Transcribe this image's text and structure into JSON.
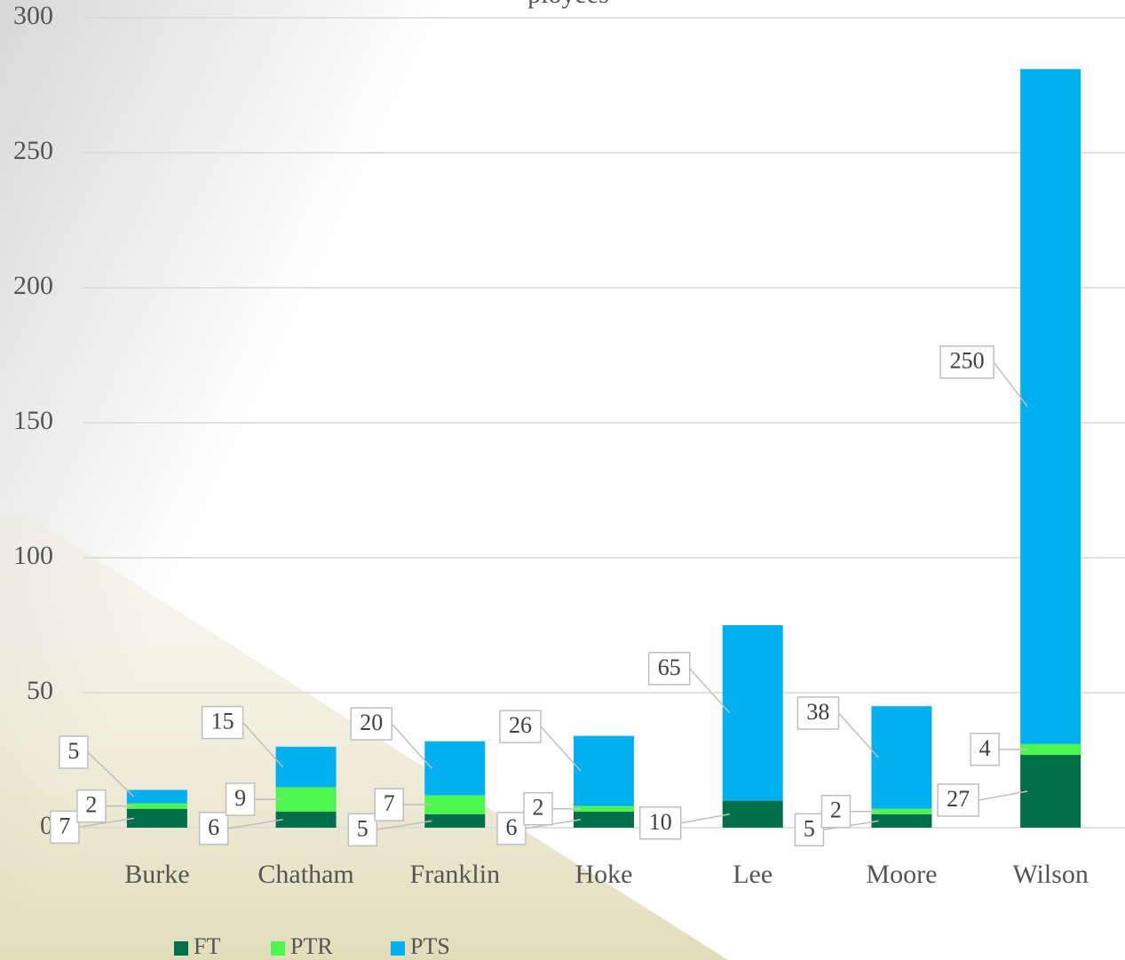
{
  "chart_data": {
    "type": "bar",
    "stacked": true,
    "title": "ployees",
    "categories": [
      "Burke",
      "Chatham",
      "Franklin",
      "Hoke",
      "Lee",
      "Moore",
      "Wilson"
    ],
    "series": [
      {
        "name": "FT",
        "color": "#00704a",
        "values": [
          7,
          6,
          5,
          6,
          10,
          5,
          27
        ]
      },
      {
        "name": "PTR",
        "color": "#4cf64c",
        "values": [
          2,
          9,
          7,
          2,
          0,
          2,
          4
        ]
      },
      {
        "name": "PTS",
        "color": "#00b0f0",
        "values": [
          5,
          15,
          20,
          26,
          65,
          38,
          250
        ]
      }
    ],
    "ylim": [
      0,
      300
    ],
    "yticks": [
      0,
      50,
      100,
      150,
      200,
      250,
      300
    ],
    "grid": true,
    "legend": "bottom"
  }
}
